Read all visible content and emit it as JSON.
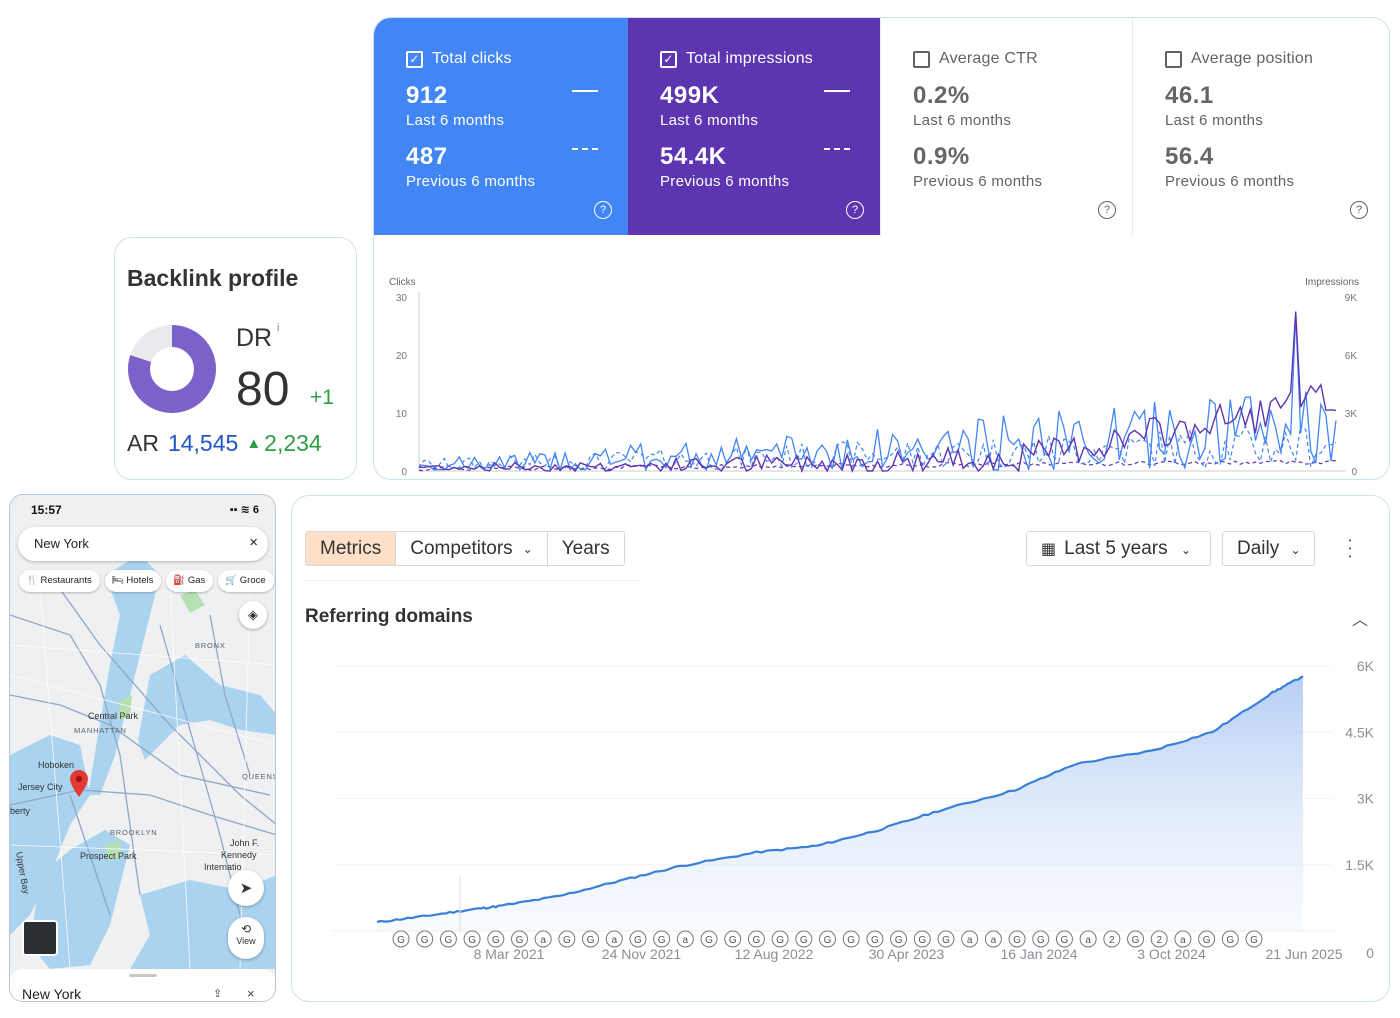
{
  "gsc": {
    "metrics": [
      {
        "id": "clicks",
        "label": "Total clicks",
        "checked": true,
        "current": "912",
        "current_period": "Last 6 months",
        "previous": "487",
        "previous_period": "Previous 6 months",
        "bg": "#4285f4"
      },
      {
        "id": "impressions",
        "label": "Total impressions",
        "checked": true,
        "current": "499K",
        "current_period": "Last 6 months",
        "previous": "54.4K",
        "previous_period": "Previous 6 months",
        "bg": "#5e35b1"
      },
      {
        "id": "ctr",
        "label": "Average CTR",
        "checked": false,
        "current": "0.2%",
        "current_period": "Last 6 months",
        "previous": "0.9%",
        "previous_period": "Previous 6 months"
      },
      {
        "id": "position",
        "label": "Average position",
        "checked": false,
        "current": "46.1",
        "current_period": "Last 6 months",
        "previous": "56.4",
        "previous_period": "Previous 6 months"
      }
    ],
    "help_glyph": "?"
  },
  "backlink": {
    "title": "Backlink profile",
    "dr_label": "DR",
    "dr_info": "i",
    "dr_value": "80",
    "dr_delta": "+1",
    "dr_fraction": 0.8,
    "ar_label": "AR",
    "ar_value": "14,545",
    "ar_delta": "2,234",
    "colors": {
      "donut": "#7b61c9",
      "track": "#e9e9ee",
      "up": "#2e9e44",
      "ar": "#2155c7"
    }
  },
  "maps": {
    "time": "15:57",
    "status_icons": "▪▪ ≋ 6",
    "search_value": "New York",
    "search_close": "×",
    "chips": [
      {
        "icon": "utensils-icon",
        "glyph": "🍴",
        "label": "Restaurants"
      },
      {
        "icon": "bed-icon",
        "glyph": "🛏",
        "label": "Hotels"
      },
      {
        "icon": "gas-icon",
        "glyph": "⛽",
        "label": "Gas"
      },
      {
        "icon": "cart-icon",
        "glyph": "🛒",
        "label": "Groce"
      }
    ],
    "map_labels": {
      "bronx": "BRONX",
      "central_park": "Central Park",
      "manhattan": "MANHATTAN",
      "hoboken": "Hoboken",
      "jersey_city": "Jersey City",
      "queens": "QUEENS",
      "brooklyn": "BROOKLYN",
      "prospect_park": "Prospect Park",
      "john": "John F.",
      "kennedy": "Kennedy",
      "international": "Internatio",
      "upper_bay": "Upper Bay",
      "liberty": "berty"
    },
    "view_label": "View",
    "sheet_title": "New York",
    "sheet_close": "×"
  },
  "gsc_chart_data": {
    "type": "line",
    "ylabel_left": "Clicks",
    "ylabel_right": "Impressions",
    "left_ticks": [
      "30",
      "20",
      "10",
      "0"
    ],
    "right_ticks": [
      "9K",
      "6K",
      "3K",
      "0"
    ],
    "x_ticks": [
      "20",
      "40",
      "60",
      "80",
      "100",
      "120",
      "140",
      "160",
      "180"
    ],
    "xlim": [
      1,
      183
    ],
    "ylim_left": [
      0,
      30
    ],
    "ylim_right": [
      0,
      9000
    ],
    "series": [],
    "colors": {
      "clicks": "#4285f4",
      "impressions": "#5e35b1"
    }
  },
  "refdom": {
    "tabs": [
      {
        "label": "Metrics",
        "active": true,
        "dropdown": false
      },
      {
        "label": "Competitors",
        "active": false,
        "dropdown": true
      },
      {
        "label": "Years",
        "active": false,
        "dropdown": false
      }
    ],
    "range_label": "Last 5 years",
    "granularity_label": "Daily",
    "chevron": "⌄",
    "title": "Referring domains",
    "collapse_glyph": "︿",
    "annotation_markers": [
      "G",
      "G",
      "G",
      "G",
      "G",
      "G",
      "a",
      "G",
      "G",
      "a",
      "G",
      "G",
      "a",
      "G",
      "G",
      "G",
      "G",
      "G",
      "G",
      "G",
      "G",
      "G",
      "G",
      "G",
      "a",
      "a",
      "G",
      "G",
      "G",
      "a",
      "2",
      "G",
      "2",
      "a",
      "G",
      "G",
      "G"
    ]
  },
  "chart_data": {
    "type": "area",
    "title": "Referring domains",
    "x_tick_labels": [
      "8 Mar 2021",
      "24 Nov 2021",
      "12 Aug 2022",
      "30 Apr 2023",
      "16 Jan 2024",
      "3 Oct 2024",
      "21 Jun 2025"
    ],
    "y_tick_labels": [
      "6K",
      "4.5K",
      "3K",
      "1.5K",
      "0"
    ],
    "ylim": [
      0,
      6000
    ],
    "x": [
      "2020-07",
      "2020-10",
      "2021-01",
      "2021-03",
      "2021-07",
      "2021-11",
      "2022-03",
      "2022-08",
      "2022-12",
      "2023-04",
      "2023-08",
      "2024-01",
      "2024-05",
      "2024-10",
      "2025-02",
      "2025-06",
      "2025-08"
    ],
    "values": [
      200,
      330,
      480,
      560,
      790,
      1140,
      1470,
      1780,
      1930,
      2280,
      2720,
      3190,
      3780,
      4080,
      4510,
      5400,
      5770
    ],
    "color": "#3a80d8"
  }
}
